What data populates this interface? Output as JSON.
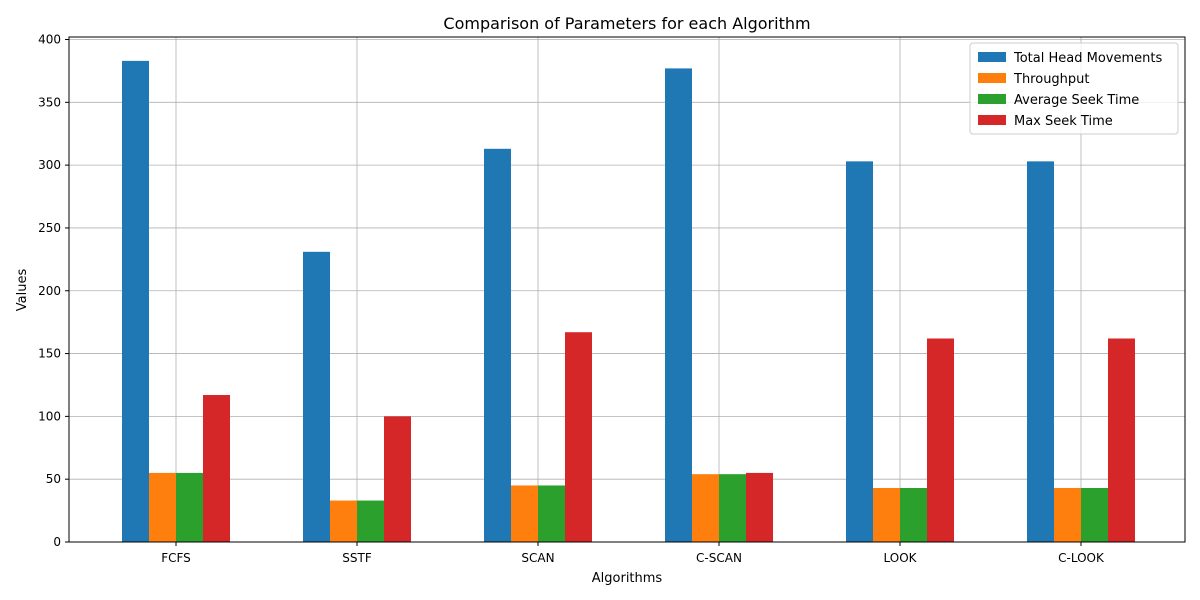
{
  "chart_data": {
    "type": "bar",
    "title": "Comparison of Parameters for each Algorithm",
    "xlabel": "Algorithms",
    "ylabel": "Values",
    "categories": [
      "FCFS",
      "SSTF",
      "SCAN",
      "C-SCAN",
      "LOOK",
      "C-LOOK"
    ],
    "ylim": [
      0,
      402
    ],
    "yticks": [
      0,
      50,
      100,
      150,
      200,
      250,
      300,
      350,
      400
    ],
    "grid": true,
    "legend_position": "top-right",
    "series": [
      {
        "name": "Total Head Movements",
        "color": "#1f77b4",
        "values": [
          383,
          231,
          313,
          377,
          303,
          303
        ]
      },
      {
        "name": "Throughput",
        "color": "#ff7f0e",
        "values": [
          55,
          33,
          45,
          54,
          43,
          43
        ]
      },
      {
        "name": "Average Seek Time",
        "color": "#2ca02c",
        "values": [
          55,
          33,
          45,
          54,
          43,
          43
        ]
      },
      {
        "name": "Max Seek Time",
        "color": "#d62728",
        "values": [
          117,
          100,
          167,
          55,
          162,
          162
        ]
      }
    ]
  }
}
